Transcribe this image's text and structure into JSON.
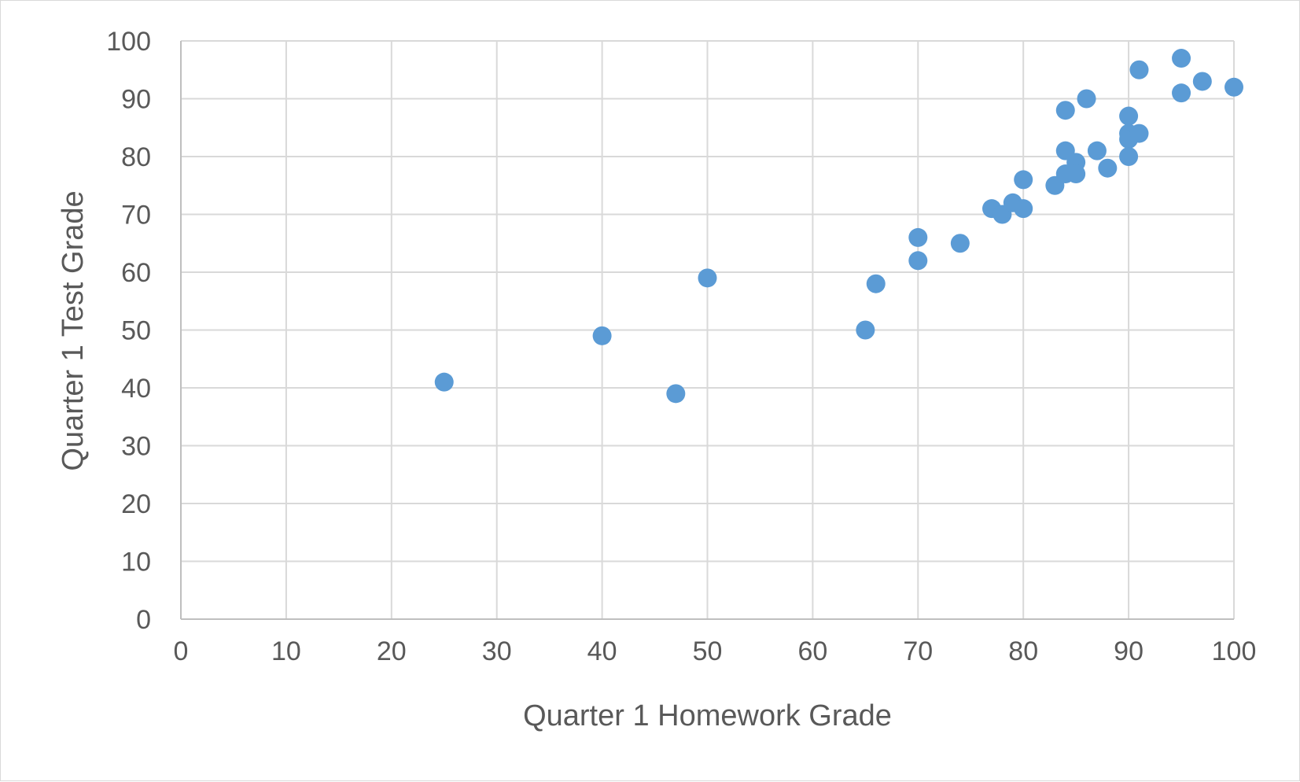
{
  "chart_data": {
    "type": "scatter",
    "title": "",
    "xlabel": "Quarter 1 Homework Grade",
    "ylabel": "Quarter 1 Test Grade",
    "xlim": [
      0,
      100
    ],
    "ylim": [
      0,
      100
    ],
    "x_ticks": [
      "0",
      "10",
      "20",
      "30",
      "40",
      "50",
      "60",
      "70",
      "80",
      "90",
      "100"
    ],
    "y_ticks": [
      "0",
      "10",
      "20",
      "30",
      "40",
      "50",
      "60",
      "70",
      "80",
      "90",
      "100"
    ],
    "grid": true,
    "legend": "none",
    "marker_color": "#5b9bd5",
    "gridline_color": "#d9d9d9",
    "text_color": "#595959",
    "series": [
      {
        "points": [
          {
            "x": 25,
            "y": 41
          },
          {
            "x": 40,
            "y": 49
          },
          {
            "x": 47,
            "y": 39
          },
          {
            "x": 50,
            "y": 59
          },
          {
            "x": 65,
            "y": 50
          },
          {
            "x": 66,
            "y": 58
          },
          {
            "x": 70,
            "y": 66
          },
          {
            "x": 70,
            "y": 62
          },
          {
            "x": 74,
            "y": 65
          },
          {
            "x": 77,
            "y": 71
          },
          {
            "x": 78,
            "y": 70
          },
          {
            "x": 79,
            "y": 72
          },
          {
            "x": 80,
            "y": 71
          },
          {
            "x": 80,
            "y": 76
          },
          {
            "x": 83,
            "y": 75
          },
          {
            "x": 84,
            "y": 77
          },
          {
            "x": 84,
            "y": 81
          },
          {
            "x": 84,
            "y": 88
          },
          {
            "x": 85,
            "y": 79
          },
          {
            "x": 85,
            "y": 77
          },
          {
            "x": 86,
            "y": 90
          },
          {
            "x": 87,
            "y": 81
          },
          {
            "x": 88,
            "y": 78
          },
          {
            "x": 90,
            "y": 87
          },
          {
            "x": 90,
            "y": 84
          },
          {
            "x": 90,
            "y": 83
          },
          {
            "x": 90,
            "y": 80
          },
          {
            "x": 91,
            "y": 84
          },
          {
            "x": 91,
            "y": 95
          },
          {
            "x": 95,
            "y": 97
          },
          {
            "x": 95,
            "y": 91
          },
          {
            "x": 97,
            "y": 93
          },
          {
            "x": 100,
            "y": 92
          }
        ]
      }
    ]
  }
}
